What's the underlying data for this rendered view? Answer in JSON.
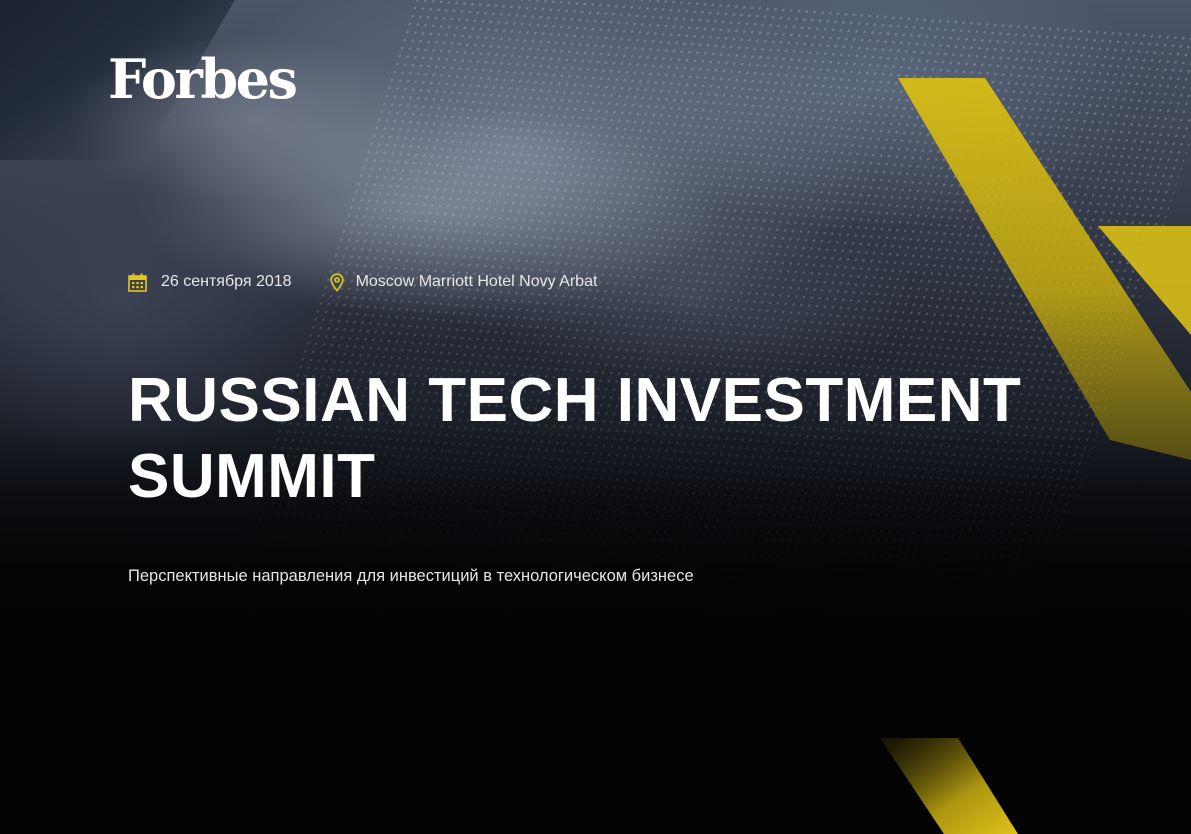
{
  "brand": {
    "logo_text": "Forbes"
  },
  "event": {
    "date": "26 сентября 2018",
    "location": "Moscow Marriott Hotel Novy Arbat",
    "title_line1": "RUSSIAN TECH INVESTMENT",
    "title_line2": "SUMMIT",
    "subtitle": "Перспективные направления для инвестиций в технологическом бизнесе"
  },
  "icons": {
    "date": "calendar-icon",
    "location": "map-pin-icon"
  },
  "colors": {
    "accent": "#e2c61c",
    "text": "#ffffff",
    "background": "#030303"
  }
}
